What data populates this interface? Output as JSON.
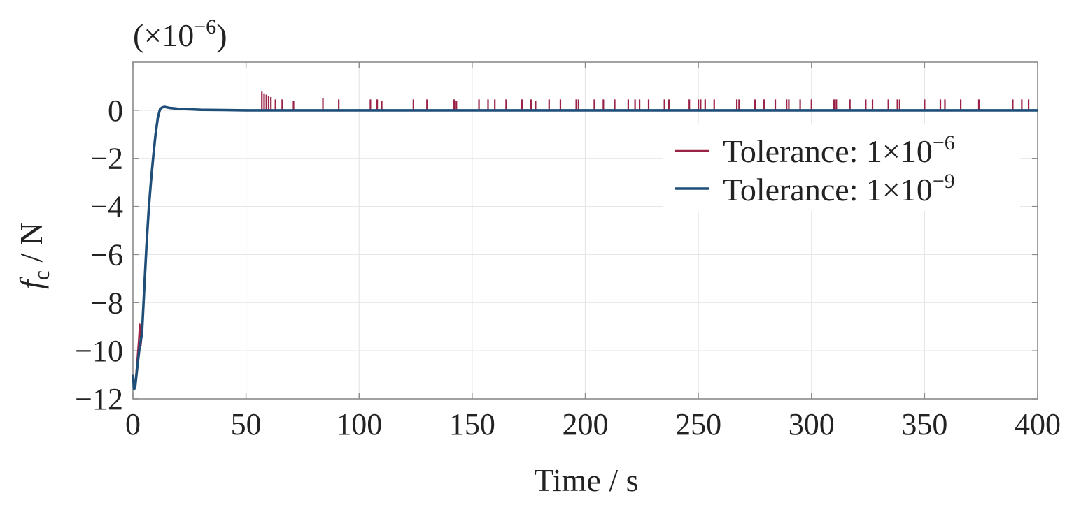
{
  "chart_data": {
    "type": "line",
    "title": "",
    "scale_label": "(×10",
    "scale_exponent": "−6",
    "scale_close": ")",
    "xlabel": "Time / s",
    "ylabel_symbol": "f",
    "ylabel_subscript": "c",
    "ylabel_unit": " / N",
    "xlim": [
      0,
      400
    ],
    "ylim": [
      -12,
      2
    ],
    "xticks": [
      0,
      50,
      100,
      150,
      200,
      250,
      300,
      350,
      400
    ],
    "yticks": [
      0,
      -2,
      -4,
      -6,
      -8,
      -10,
      -12
    ],
    "xtick_labels": [
      "0",
      "50",
      "100",
      "150",
      "200",
      "250",
      "300",
      "350",
      "400"
    ],
    "ytick_labels": [
      "0",
      "−2",
      "−4",
      "−6",
      "−8",
      "−10",
      "−12"
    ],
    "grid": true,
    "legend_position": "right",
    "series": [
      {
        "name_base": "Tolerance: 1×10",
        "name_exponent": "−6",
        "color": "#9b2346",
        "x": [
          0,
          0.5,
          1,
          2,
          2.5,
          3,
          3.5,
          4,
          5,
          6,
          7,
          8,
          9,
          10,
          11,
          12,
          13,
          14,
          15,
          16,
          18,
          20,
          25,
          30,
          40,
          50,
          60,
          400
        ],
        "y": [
          -11.0,
          -11.5,
          -11.4,
          -10.2,
          -9.6,
          -8.9,
          -9.8,
          -9.3,
          -7.4,
          -5.6,
          -4.1,
          -2.9,
          -1.9,
          -1.0,
          -0.3,
          0.05,
          0.12,
          0.14,
          0.12,
          0.1,
          0.08,
          0.06,
          0.04,
          0.02,
          0.01,
          0.0,
          0.0,
          0.0
        ],
        "spikes": [
          {
            "x": 57,
            "y": 0.8
          },
          {
            "x": 58,
            "y": 0.7
          },
          {
            "x": 59,
            "y": 0.65
          },
          {
            "x": 60,
            "y": 0.6
          },
          {
            "x": 61,
            "y": 0.55
          },
          {
            "x": 63,
            "y": 0.45
          },
          {
            "x": 66,
            "y": 0.45
          },
          {
            "x": 71,
            "y": 0.4
          },
          {
            "x": 84,
            "y": 0.5
          },
          {
            "x": 91,
            "y": 0.45
          },
          {
            "x": 105,
            "y": 0.45
          },
          {
            "x": 108,
            "y": 0.45
          },
          {
            "x": 110,
            "y": 0.4
          },
          {
            "x": 124,
            "y": 0.45
          },
          {
            "x": 130,
            "y": 0.45
          },
          {
            "x": 142,
            "y": 0.45
          },
          {
            "x": 143,
            "y": 0.4
          },
          {
            "x": 153,
            "y": 0.45
          },
          {
            "x": 157,
            "y": 0.45
          },
          {
            "x": 160,
            "y": 0.45
          },
          {
            "x": 165,
            "y": 0.45
          },
          {
            "x": 172,
            "y": 0.45
          },
          {
            "x": 176,
            "y": 0.45
          },
          {
            "x": 178,
            "y": 0.4
          },
          {
            "x": 184,
            "y": 0.45
          },
          {
            "x": 189,
            "y": 0.45
          },
          {
            "x": 196,
            "y": 0.45
          },
          {
            "x": 197,
            "y": 0.45
          },
          {
            "x": 204,
            "y": 0.45
          },
          {
            "x": 208,
            "y": 0.45
          },
          {
            "x": 213,
            "y": 0.45
          },
          {
            "x": 219,
            "y": 0.45
          },
          {
            "x": 222,
            "y": 0.45
          },
          {
            "x": 224,
            "y": 0.45
          },
          {
            "x": 228,
            "y": 0.45
          },
          {
            "x": 235,
            "y": 0.45
          },
          {
            "x": 237,
            "y": 0.45
          },
          {
            "x": 246,
            "y": 0.45
          },
          {
            "x": 250,
            "y": 0.45
          },
          {
            "x": 251,
            "y": 0.45
          },
          {
            "x": 253,
            "y": 0.45
          },
          {
            "x": 257,
            "y": 0.45
          },
          {
            "x": 267,
            "y": 0.45
          },
          {
            "x": 268,
            "y": 0.45
          },
          {
            "x": 275,
            "y": 0.45
          },
          {
            "x": 279,
            "y": 0.45
          },
          {
            "x": 284,
            "y": 0.45
          },
          {
            "x": 289,
            "y": 0.45
          },
          {
            "x": 290,
            "y": 0.45
          },
          {
            "x": 295,
            "y": 0.45
          },
          {
            "x": 300,
            "y": 0.45
          },
          {
            "x": 310,
            "y": 0.45
          },
          {
            "x": 311,
            "y": 0.45
          },
          {
            "x": 317,
            "y": 0.45
          },
          {
            "x": 324,
            "y": 0.45
          },
          {
            "x": 327,
            "y": 0.45
          },
          {
            "x": 334,
            "y": 0.45
          },
          {
            "x": 338,
            "y": 0.45
          },
          {
            "x": 339,
            "y": 0.45
          },
          {
            "x": 350,
            "y": 0.45
          },
          {
            "x": 357,
            "y": 0.45
          },
          {
            "x": 359,
            "y": 0.45
          },
          {
            "x": 366,
            "y": 0.45
          },
          {
            "x": 374,
            "y": 0.45
          },
          {
            "x": 389,
            "y": 0.45
          },
          {
            "x": 393,
            "y": 0.45
          },
          {
            "x": 396,
            "y": 0.45
          }
        ]
      },
      {
        "name_base": "Tolerance: 1×10",
        "name_exponent": "−9",
        "color": "#1f4e79",
        "x": [
          0,
          0.5,
          1,
          2,
          3,
          4,
          5,
          6,
          7,
          8,
          9,
          10,
          11,
          12,
          13,
          14,
          15,
          16,
          18,
          20,
          25,
          30,
          40,
          50,
          100,
          150,
          200,
          250,
          300,
          350,
          400
        ],
        "y": [
          -11.0,
          -11.6,
          -11.5,
          -10.6,
          -9.8,
          -9.3,
          -7.4,
          -5.6,
          -4.1,
          -2.9,
          -1.9,
          -1.0,
          -0.3,
          0.05,
          0.12,
          0.14,
          0.12,
          0.1,
          0.08,
          0.06,
          0.04,
          0.02,
          0.01,
          0.0,
          0.0,
          0.0,
          0.0,
          0.0,
          0.0,
          0.0,
          0.0
        ]
      }
    ]
  }
}
